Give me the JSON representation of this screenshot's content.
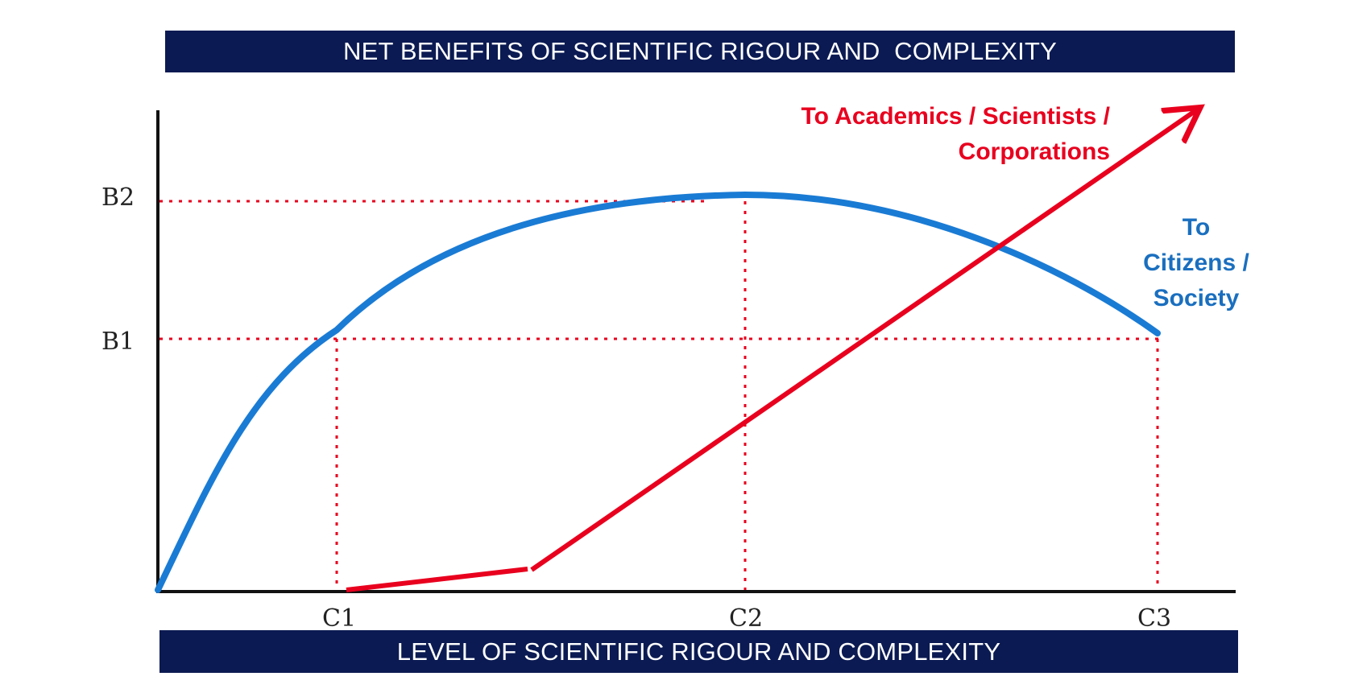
{
  "title": "NET BENEFITS OF SCIENTIFIC RIGOUR AND  COMPLEXITY",
  "xlabel": "LEVEL OF SCIENTIFIC RIGOUR AND COMPLEXITY",
  "y_ticks": [
    "B2",
    "B1"
  ],
  "x_ticks": [
    "C1",
    "C2",
    "C3"
  ],
  "academics_label": [
    "To Academics / Scientists /",
    "Corporations"
  ],
  "citizens_label": [
    "To",
    "Citizens /",
    "Society"
  ],
  "colors": {
    "banner": "#0b1a52",
    "citizens_curve": "#1a7bd4",
    "academics_line": "#e8001e",
    "guides": "#e8001e",
    "axis": "#111111"
  },
  "chart_data": {
    "type": "line",
    "title": "NET BENEFITS OF SCIENTIFIC RIGOUR AND  COMPLEXITY",
    "xlabel": "LEVEL OF SCIENTIFIC RIGOUR AND COMPLEXITY",
    "ylabel": "",
    "x_ticks": [
      "C1",
      "C2",
      "C3"
    ],
    "y_ticks": [
      "B1",
      "B2"
    ],
    "series": [
      {
        "name": "To Citizens / Society",
        "description_points": [
          [
            "0",
            "0"
          ],
          [
            "C1",
            "B1"
          ],
          [
            "C2",
            "B2"
          ],
          [
            "C3",
            "B1"
          ]
        ]
      },
      {
        "name": "To Academics / Scientists / Corporations",
        "description_points": [
          [
            "C1",
            "0"
          ],
          [
            "between C1 and C2",
            "low"
          ],
          [
            "beyond C3",
            "above B2"
          ]
        ]
      }
    ],
    "grid": "dotted guides at B1, B2, C1, C2, C3"
  }
}
